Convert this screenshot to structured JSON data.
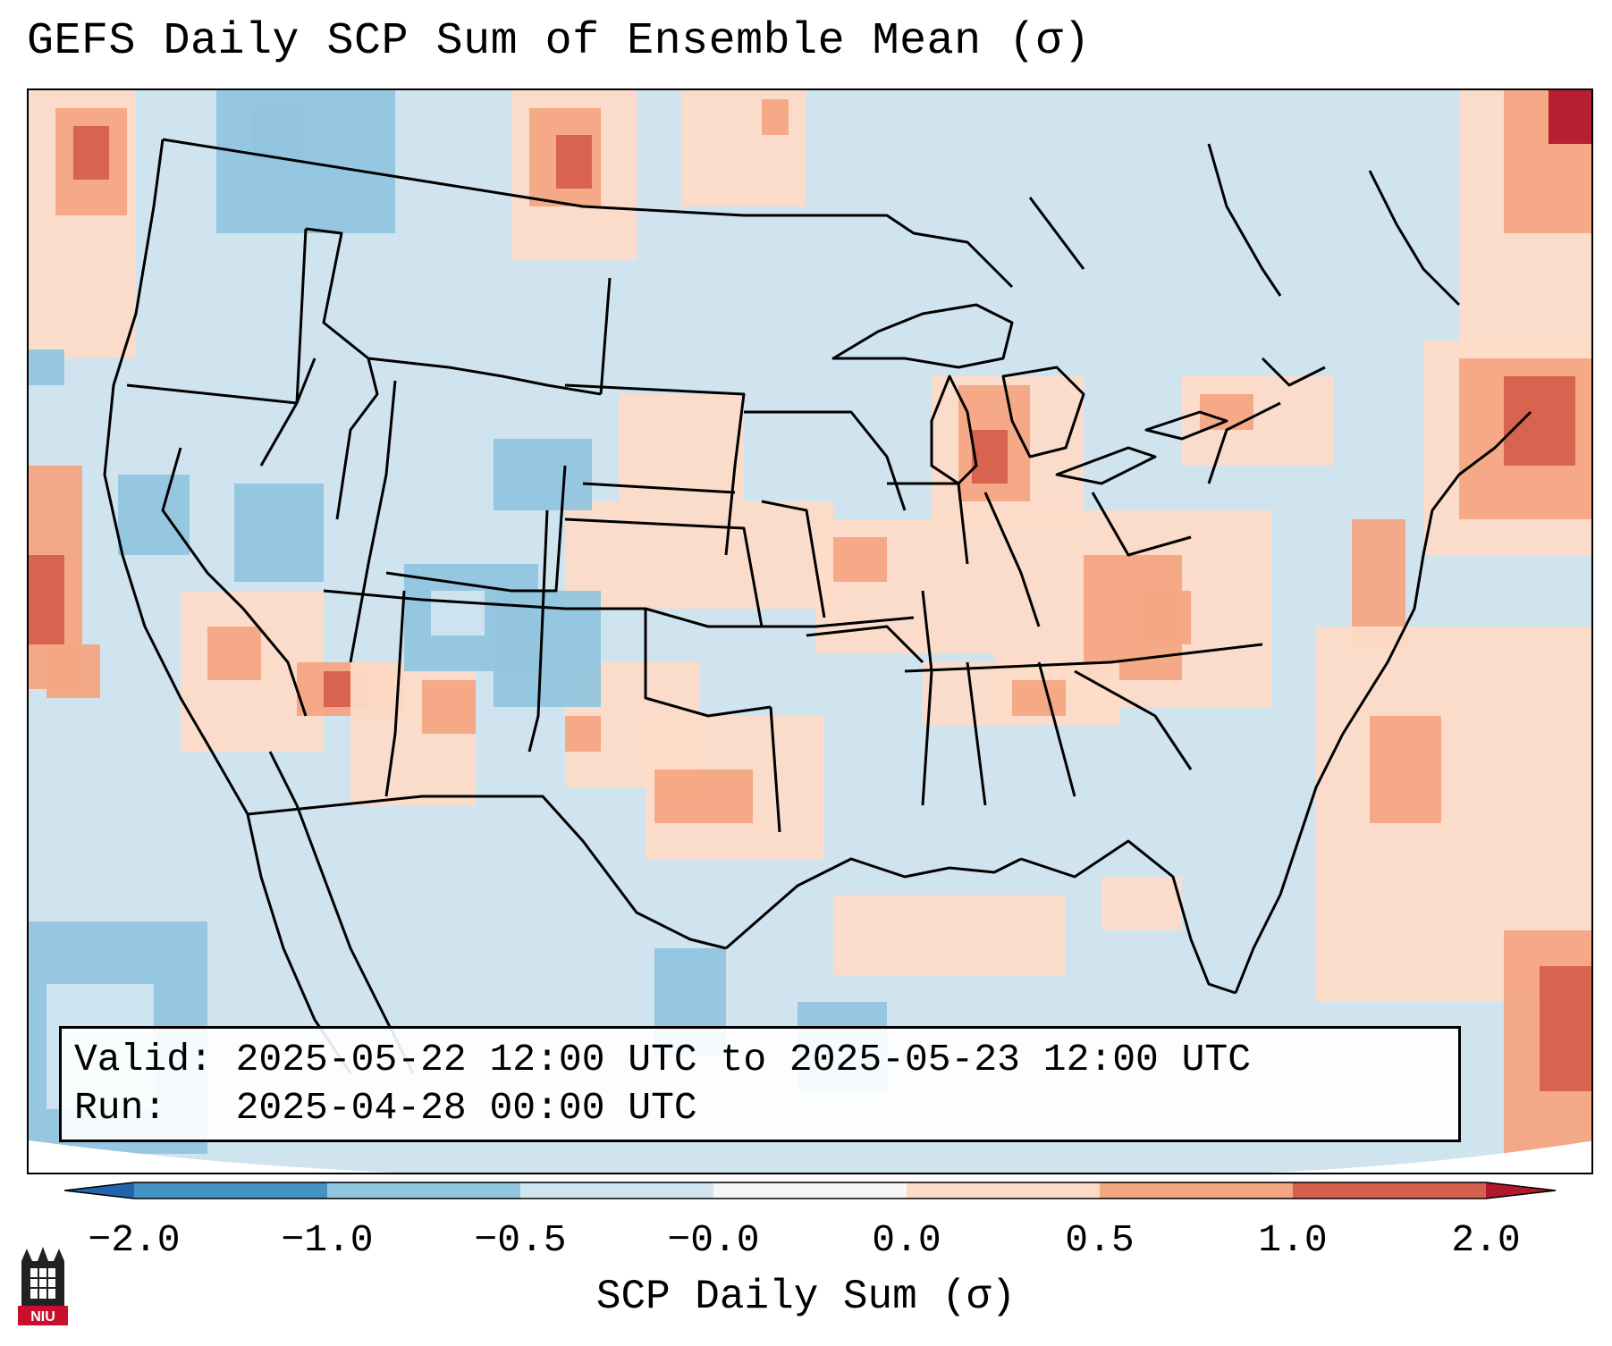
{
  "title": "GEFS Daily SCP Sum of Ensemble Mean (σ)",
  "info": {
    "valid_line": "Valid: 2025-05-22 12:00 UTC to 2025-05-23 12:00 UTC",
    "run_line": "Run:   2025-04-28 00:00 UTC"
  },
  "colorbar": {
    "label": "SCP Daily Sum (σ)",
    "ticks": [
      "−2.0",
      "−1.0",
      "−0.5",
      "−0.0",
      "0.0",
      "0.5",
      "1.0",
      "2.0"
    ],
    "bins": [
      {
        "range": "<-2.0",
        "color": "#2166ac"
      },
      {
        "range": "-2.0 to -1.0",
        "color": "#4393c3"
      },
      {
        "range": "-1.0 to -0.5",
        "color": "#92c5de"
      },
      {
        "range": "-0.5 to -0.0",
        "color": "#d1e5f0"
      },
      {
        "range": "-0.0 to 0.0",
        "color": "#f7f7f7"
      },
      {
        "range": "0.0 to 0.5",
        "color": "#fddbc7"
      },
      {
        "range": "0.5 to 1.0",
        "color": "#f4a582"
      },
      {
        "range": "1.0 to 2.0",
        "color": "#d6604d"
      },
      {
        "range": ">2.0",
        "color": "#b2182b"
      }
    ]
  },
  "map": {
    "region": "Contiguous United States",
    "background_category_color": "#d1e5f0",
    "positive_anomaly_regions": [
      "Pacific Northwest coast",
      "Southern Saskatchewan",
      "Northern Michigan / Lake Michigan",
      "Great Lakes to Ohio Valley",
      "Southern Plains / Oklahoma",
      "Four Corners",
      "New England / Maritimes",
      "Western Atlantic",
      "Southeast Atlantic coast",
      "Caribbean"
    ],
    "negative_anomaly_regions": [
      "Intermountain West",
      "Colorado",
      "Wyoming",
      "Eastern Pacific off Baja"
    ]
  },
  "logo": {
    "text": "NIU"
  }
}
